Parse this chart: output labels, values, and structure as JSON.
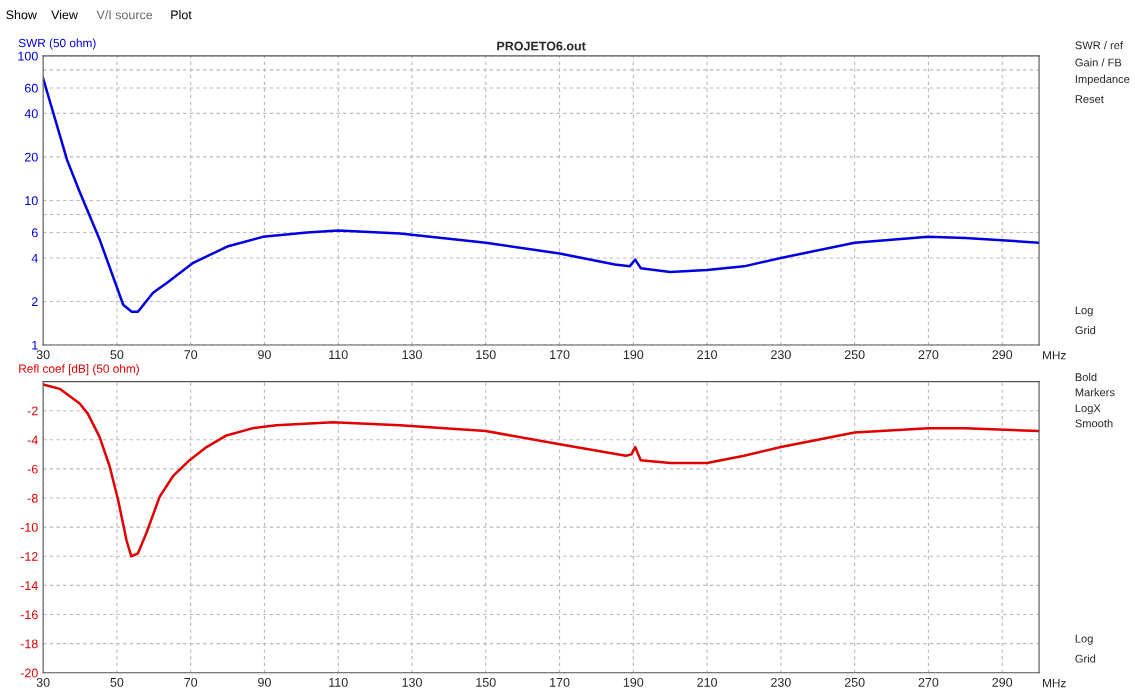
{
  "chart_data": [
    {
      "type": "line",
      "title": "PROJETO6.out",
      "ylabel": "SWR (50 ohm)",
      "log": "y",
      "grid": true,
      "xlim": [
        30,
        300
      ],
      "xticks": [
        30,
        50,
        70,
        90,
        110,
        130,
        150,
        170,
        190,
        210,
        230,
        250,
        270,
        290
      ],
      "ylim": [
        1,
        100
      ],
      "yticks": [
        1,
        2,
        4,
        6,
        {
          "value": 8,
          "label": null
        },
        10,
        20,
        40,
        60,
        {
          "value": 80,
          "label": null
        },
        100
      ],
      "xlabel": "MHz",
      "line_style": "solid",
      "marker": "none",
      "series": [
        {
          "color": "#0000e0",
          "x": [
            30,
            36.5,
            40,
            45.4,
            51.7,
            54,
            55.7,
            59.8,
            63.6,
            70.7,
            79.9,
            89.6,
            101.5,
            110,
            126.8,
            150,
            170,
            185,
            189,
            190.5,
            192,
            200,
            210,
            220,
            230,
            250,
            270,
            280,
            300
          ],
          "values": [
            70,
            19,
            11.3,
            5.3,
            1.9,
            1.7,
            1.7,
            2.3,
            2.7,
            3.7,
            4.8,
            5.6,
            6.0,
            6.2,
            5.9,
            5.1,
            4.3,
            3.6,
            3.5,
            3.9,
            3.4,
            3.2,
            3.3,
            3.5,
            4.0,
            5.1,
            5.6,
            5.5,
            5.1
          ]
        }
      ]
    },
    {
      "type": "line",
      "ylabel": "Refl coef [dB] (50 ohm)",
      "grid": true,
      "xlim": [
        30,
        300
      ],
      "xticks": [
        30,
        50,
        70,
        90,
        110,
        130,
        150,
        170,
        190,
        210,
        230,
        250,
        270,
        290
      ],
      "ylim": [
        -20,
        0
      ],
      "yticks": [
        -20,
        -18,
        -16,
        -14,
        -12,
        -10,
        -8,
        -6,
        -4,
        -2
      ],
      "xlabel": "MHz",
      "line_style": "solid",
      "marker": "none",
      "series": [
        {
          "color": "#e00000",
          "x": [
            30,
            34.5,
            39.9,
            42.1,
            45.3,
            48,
            50.3,
            52.6,
            53.9,
            55.7,
            58,
            61.6,
            65.2,
            69.7,
            74.3,
            79.7,
            86.9,
            93.2,
            108.6,
            126.7,
            150,
            170,
            188,
            189.5,
            190.5,
            192,
            200,
            210,
            220,
            230,
            250,
            270,
            280,
            300
          ],
          "values": [
            -0.2,
            -0.5,
            -1.5,
            -2.2,
            -3.8,
            -5.8,
            -8.1,
            -10.9,
            -12.0,
            -11.8,
            -10.4,
            -7.9,
            -6.5,
            -5.4,
            -4.5,
            -3.7,
            -3.2,
            -3.0,
            -2.8,
            -3.0,
            -3.4,
            -4.3,
            -5.1,
            -5.0,
            -4.5,
            -5.4,
            -5.6,
            -5.6,
            -5.1,
            -4.5,
            -3.5,
            -3.2,
            -3.2,
            -3.4
          ]
        }
      ]
    },
    {
      "type": "other",
      "annotations": [
        "Show",
        "View",
        "V/I source",
        "Plot"
      ]
    },
    {
      "type": "other",
      "annotations": [
        "SWR / ref",
        "Gain / FB",
        "Impedance",
        "Reset",
        "Log",
        "Grid",
        "Bold",
        "Markers",
        "LogX",
        "Smooth",
        "Log",
        "Grid"
      ]
    }
  ]
}
